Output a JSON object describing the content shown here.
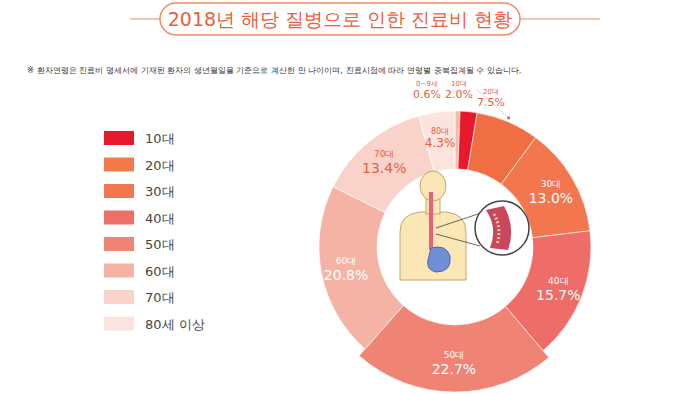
{
  "chart_data": {
    "type": "donut",
    "title": "2018년 해당 질병으로 인한 진료비 현황",
    "subtitle": "※ 환자연령은 진료비 명세서에 기재된 환자의 생년월일을 기준으로 계산한 만 나이이며, 진료시점에 따라 연령별 중복집계될 수 있습니다.",
    "categories": [
      "0~9세",
      "10대",
      "20대",
      "30대",
      "40대",
      "50대",
      "60대",
      "70대",
      "80대"
    ],
    "values": [
      0.6,
      2.0,
      7.5,
      13.0,
      15.7,
      22.7,
      20.8,
      13.4,
      4.3
    ],
    "value_labels": [
      "0.6%",
      "2.0%",
      "7.5%",
      "13.0%",
      "15.7%",
      "22.7%",
      "20.8%",
      "13.4%",
      "4.3%"
    ],
    "colors": [
      "#f7b9a8",
      "#e8192c",
      "#f06e43",
      "#f2774f",
      "#ef6d68",
      "#f08474",
      "#f5b3a5",
      "#f9d3ca",
      "#fbe4de"
    ],
    "data_labels": true,
    "legend": "left",
    "legend_entries": [
      {
        "name": "10대",
        "color": "#e8192c"
      },
      {
        "name": "20대",
        "color": "#f07a4a"
      },
      {
        "name": "30대",
        "color": "#f2774f"
      },
      {
        "name": "40대",
        "color": "#ee6e68"
      },
      {
        "name": "50대",
        "color": "#f08474"
      },
      {
        "name": "60대",
        "color": "#f5b3a5"
      },
      {
        "name": "70대",
        "color": "#f9d3ca"
      },
      {
        "name": "80세 이상",
        "color": "#fbe4de"
      }
    ]
  }
}
